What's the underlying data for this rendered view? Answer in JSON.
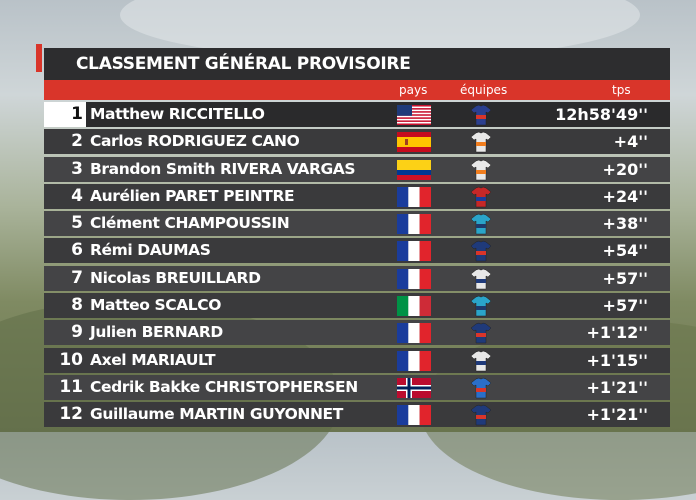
{
  "title": "CLASSEMENT GÉNÉRAL PROVISOIRE",
  "columns": {
    "pays": "pays",
    "equipes": "équipes",
    "tps": "tps"
  },
  "colors": {
    "accent": "#d9352a",
    "panel": "#2d2d2f",
    "row": "#3a3a3c",
    "row_alt": "#444446"
  },
  "rows": [
    {
      "pos": "1",
      "name": "Matthew RICCITELLO",
      "flag": "us-flag-icon",
      "jersey": "jersey-icon",
      "time": "12h58'49''"
    },
    {
      "pos": "2",
      "name": "Carlos RODRIGUEZ CANO",
      "flag": "es-flag-icon",
      "jersey": "jersey-icon",
      "time": "+4''"
    },
    {
      "pos": "3",
      "name": "Brandon Smith RIVERA VARGAS",
      "flag": "co-flag-icon",
      "jersey": "jersey-icon",
      "time": "+20''"
    },
    {
      "pos": "4",
      "name": "Aurélien PARET PEINTRE",
      "flag": "fr-flag-icon",
      "jersey": "jersey-icon",
      "time": "+24''"
    },
    {
      "pos": "5",
      "name": "Clément CHAMPOUSSIN",
      "flag": "fr-flag-icon",
      "jersey": "jersey-icon",
      "time": "+38''"
    },
    {
      "pos": "6",
      "name": "Rémi DAUMAS",
      "flag": "fr-flag-icon",
      "jersey": "jersey-icon",
      "time": "+54''"
    },
    {
      "pos": "7",
      "name": "Nicolas BREUILLARD",
      "flag": "fr-flag-icon",
      "jersey": "jersey-icon",
      "time": "+57''"
    },
    {
      "pos": "8",
      "name": "Matteo SCALCO",
      "flag": "it-flag-icon",
      "jersey": "jersey-icon",
      "time": "+57''"
    },
    {
      "pos": "9",
      "name": "Julien BERNARD",
      "flag": "fr-flag-icon",
      "jersey": "jersey-icon",
      "time": "+1'12''"
    },
    {
      "pos": "10",
      "name": "Axel MARIAULT",
      "flag": "fr-flag-icon",
      "jersey": "jersey-icon",
      "time": "+1'15''"
    },
    {
      "pos": "11",
      "name": "Cedrik Bakke CHRISTOPHERSEN",
      "flag": "no-flag-icon",
      "jersey": "jersey-icon",
      "time": "+1'21''"
    },
    {
      "pos": "12",
      "name": "Guillaume MARTIN GUYONNET",
      "flag": "fr-flag-icon",
      "jersey": "jersey-icon",
      "time": "+1'21''"
    }
  ]
}
